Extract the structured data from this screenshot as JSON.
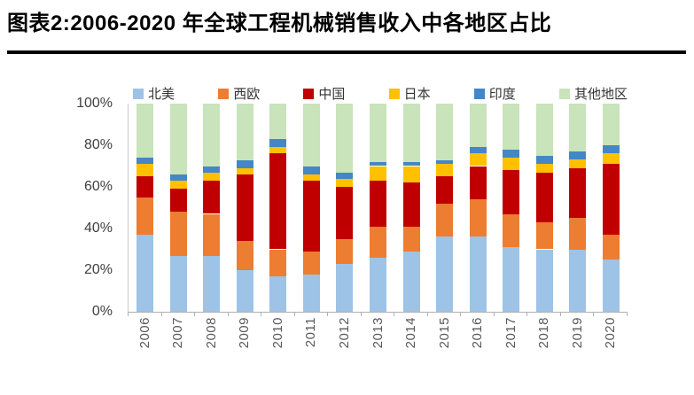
{
  "title": "图表2:2006-2020 年全球工程机械销售收入中各地区占比",
  "style": {
    "background": "#ffffff",
    "title_color": "#000000",
    "divider_color": "#000000",
    "axis_color": "#b0b0b0",
    "y_axis_color": "#c9c9c9",
    "ytick_text_color": "#404040",
    "xtick_text_color": "#595959",
    "legend_text_color": "#333333"
  },
  "chart_data": {
    "type": "bar",
    "stacked": true,
    "units": "percent",
    "title": "图表2:2006-2020 年全球工程机械销售收入中各地区占比",
    "categories": [
      "2006",
      "2007",
      "2008",
      "2009",
      "2010",
      "2011",
      "2012",
      "2013",
      "2014",
      "2015",
      "2016",
      "2017",
      "2018",
      "2019",
      "2020"
    ],
    "series": [
      {
        "name": "北美",
        "color": "#9DC3E6",
        "values": [
          37,
          27,
          27,
          20,
          17,
          18,
          23,
          26,
          29,
          36,
          36,
          31,
          30,
          30,
          25
        ]
      },
      {
        "name": "西欧",
        "color": "#ED7D31",
        "values": [
          18,
          21,
          20,
          14,
          13,
          11,
          12,
          15,
          12,
          16,
          18,
          16,
          13,
          15,
          12
        ]
      },
      {
        "name": "中国",
        "color": "#C00000",
        "values": [
          10,
          11,
          16,
          32,
          46,
          34,
          25,
          22,
          21,
          13,
          16,
          21,
          24,
          24,
          34
        ]
      },
      {
        "name": "日本",
        "color": "#FFC000",
        "values": [
          6,
          4,
          4,
          3,
          3,
          3,
          4,
          7,
          8,
          6,
          6,
          6,
          4,
          4,
          5
        ]
      },
      {
        "name": "印度",
        "color": "#4586C6",
        "values": [
          3,
          3,
          3,
          4,
          4,
          4,
          3,
          2,
          2,
          2,
          3,
          4,
          4,
          4,
          4
        ]
      },
      {
        "name": "其他地区",
        "color": "#C9E3BA",
        "values": [
          26,
          34,
          30,
          27,
          17,
          30,
          33,
          28,
          28,
          27,
          21,
          22,
          25,
          23,
          20
        ]
      }
    ],
    "ytick_labels": [
      "0%",
      "20%",
      "40%",
      "60%",
      "80%",
      "100%"
    ],
    "ytick_values": [
      0,
      20,
      40,
      60,
      80,
      100
    ],
    "ylim": [
      0,
      100
    ],
    "legend_position": "top",
    "grid": false,
    "xlabel": "",
    "ylabel": ""
  }
}
